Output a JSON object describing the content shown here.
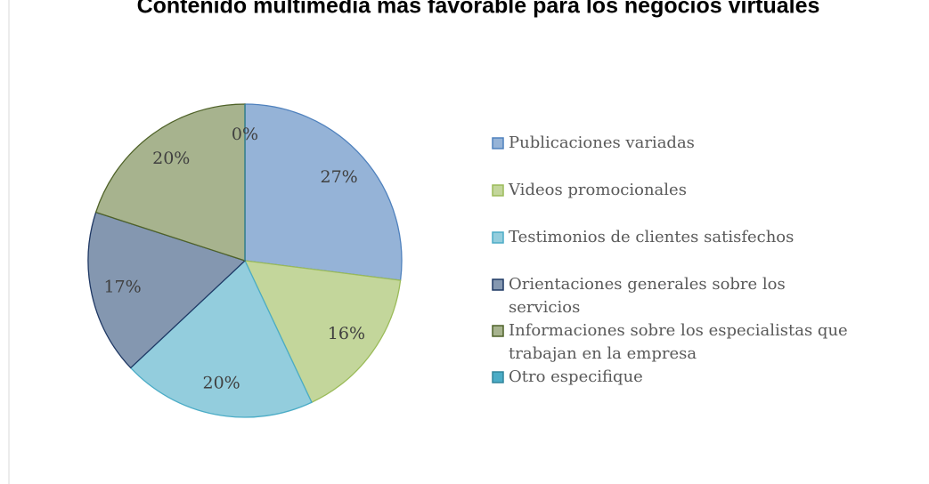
{
  "chart_data": {
    "type": "pie",
    "title": "Contenido multimedia más favorable para los negocios virtuales",
    "categories": [
      "Publicaciones variadas",
      "Videos promocionales",
      "Testimonios de clientes satisfechos",
      "Orientaciones generales sobre los servicios",
      "Informaciones sobre los especialistas que trabajan en la empresa",
      "Otro especifique"
    ],
    "values": [
      27,
      16,
      20,
      17,
      20,
      0
    ],
    "value_labels": [
      "27%",
      "16%",
      "20%",
      "17%",
      "20%",
      "0%"
    ],
    "colors": [
      "#95b3d7",
      "#c3d69b",
      "#93cddd",
      "#8497b0",
      "#a7b38e",
      "#4bacc6"
    ],
    "edge_colors": [
      "#4f81bd",
      "#9bbb59",
      "#4bacc6",
      "#1f3864",
      "#4f6228",
      "#31859c"
    ],
    "legend": "right"
  }
}
